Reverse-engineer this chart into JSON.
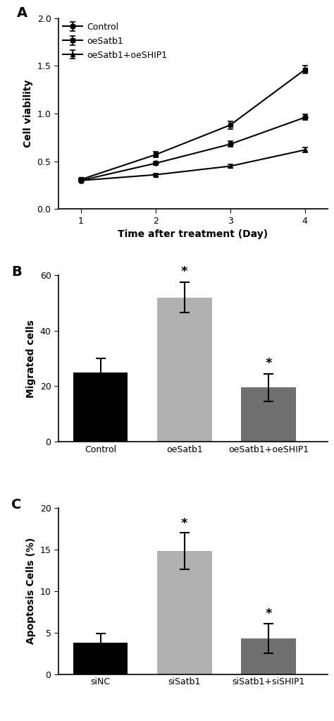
{
  "panel_A": {
    "x": [
      1,
      2,
      3,
      4
    ],
    "control": {
      "y": [
        0.3,
        0.48,
        0.68,
        0.96
      ],
      "yerr": [
        0.01,
        0.02,
        0.03,
        0.03
      ]
    },
    "oeSatb1": {
      "y": [
        0.31,
        0.57,
        0.88,
        1.46
      ],
      "yerr": [
        0.01,
        0.03,
        0.04,
        0.04
      ]
    },
    "oeSatb1_oeSHIP1": {
      "y": [
        0.3,
        0.36,
        0.45,
        0.62
      ],
      "yerr": [
        0.01,
        0.015,
        0.02,
        0.025
      ]
    },
    "xlabel": "Time after treatment (Day)",
    "ylabel": "Cell viability",
    "ylim": [
      0.0,
      2.0
    ],
    "yticks": [
      0.0,
      0.5,
      1.0,
      1.5,
      2.0
    ],
    "xticks": [
      1,
      2,
      3,
      4
    ],
    "legend_labels": [
      "Control",
      "oeSatb1",
      "oeSatb1+oeSHIP1"
    ],
    "marker_control": "o",
    "marker_oeSatb1": "s",
    "marker_oeSatb1_oeSHIP1": "^",
    "panel_label": "A"
  },
  "panel_B": {
    "categories": [
      "Control",
      "oeSatb1",
      "oeSatb1+oeSHIP1"
    ],
    "values": [
      25,
      52,
      19.5
    ],
    "yerr": [
      5,
      5.5,
      5
    ],
    "colors": [
      "#000000",
      "#b0b0b0",
      "#707070"
    ],
    "ylabel": "Migrated cells",
    "ylim": [
      0,
      60
    ],
    "yticks": [
      0,
      20,
      40,
      60
    ],
    "significance": [
      null,
      "*",
      "*"
    ],
    "panel_label": "B"
  },
  "panel_C": {
    "categories": [
      "siNC",
      "siSatb1",
      "siSatb1+siSHIP1"
    ],
    "values": [
      3.8,
      14.8,
      4.3
    ],
    "yerr": [
      1.1,
      2.2,
      1.8
    ],
    "colors": [
      "#000000",
      "#b0b0b0",
      "#707070"
    ],
    "ylabel": "Apoptosis Cells (%)",
    "ylim": [
      0,
      20
    ],
    "yticks": [
      0,
      5,
      10,
      15,
      20
    ],
    "significance": [
      null,
      "*",
      "*"
    ],
    "panel_label": "C"
  },
  "line_color": "#000000",
  "font_size": 9,
  "label_fontsize": 10,
  "tick_fontsize": 9
}
